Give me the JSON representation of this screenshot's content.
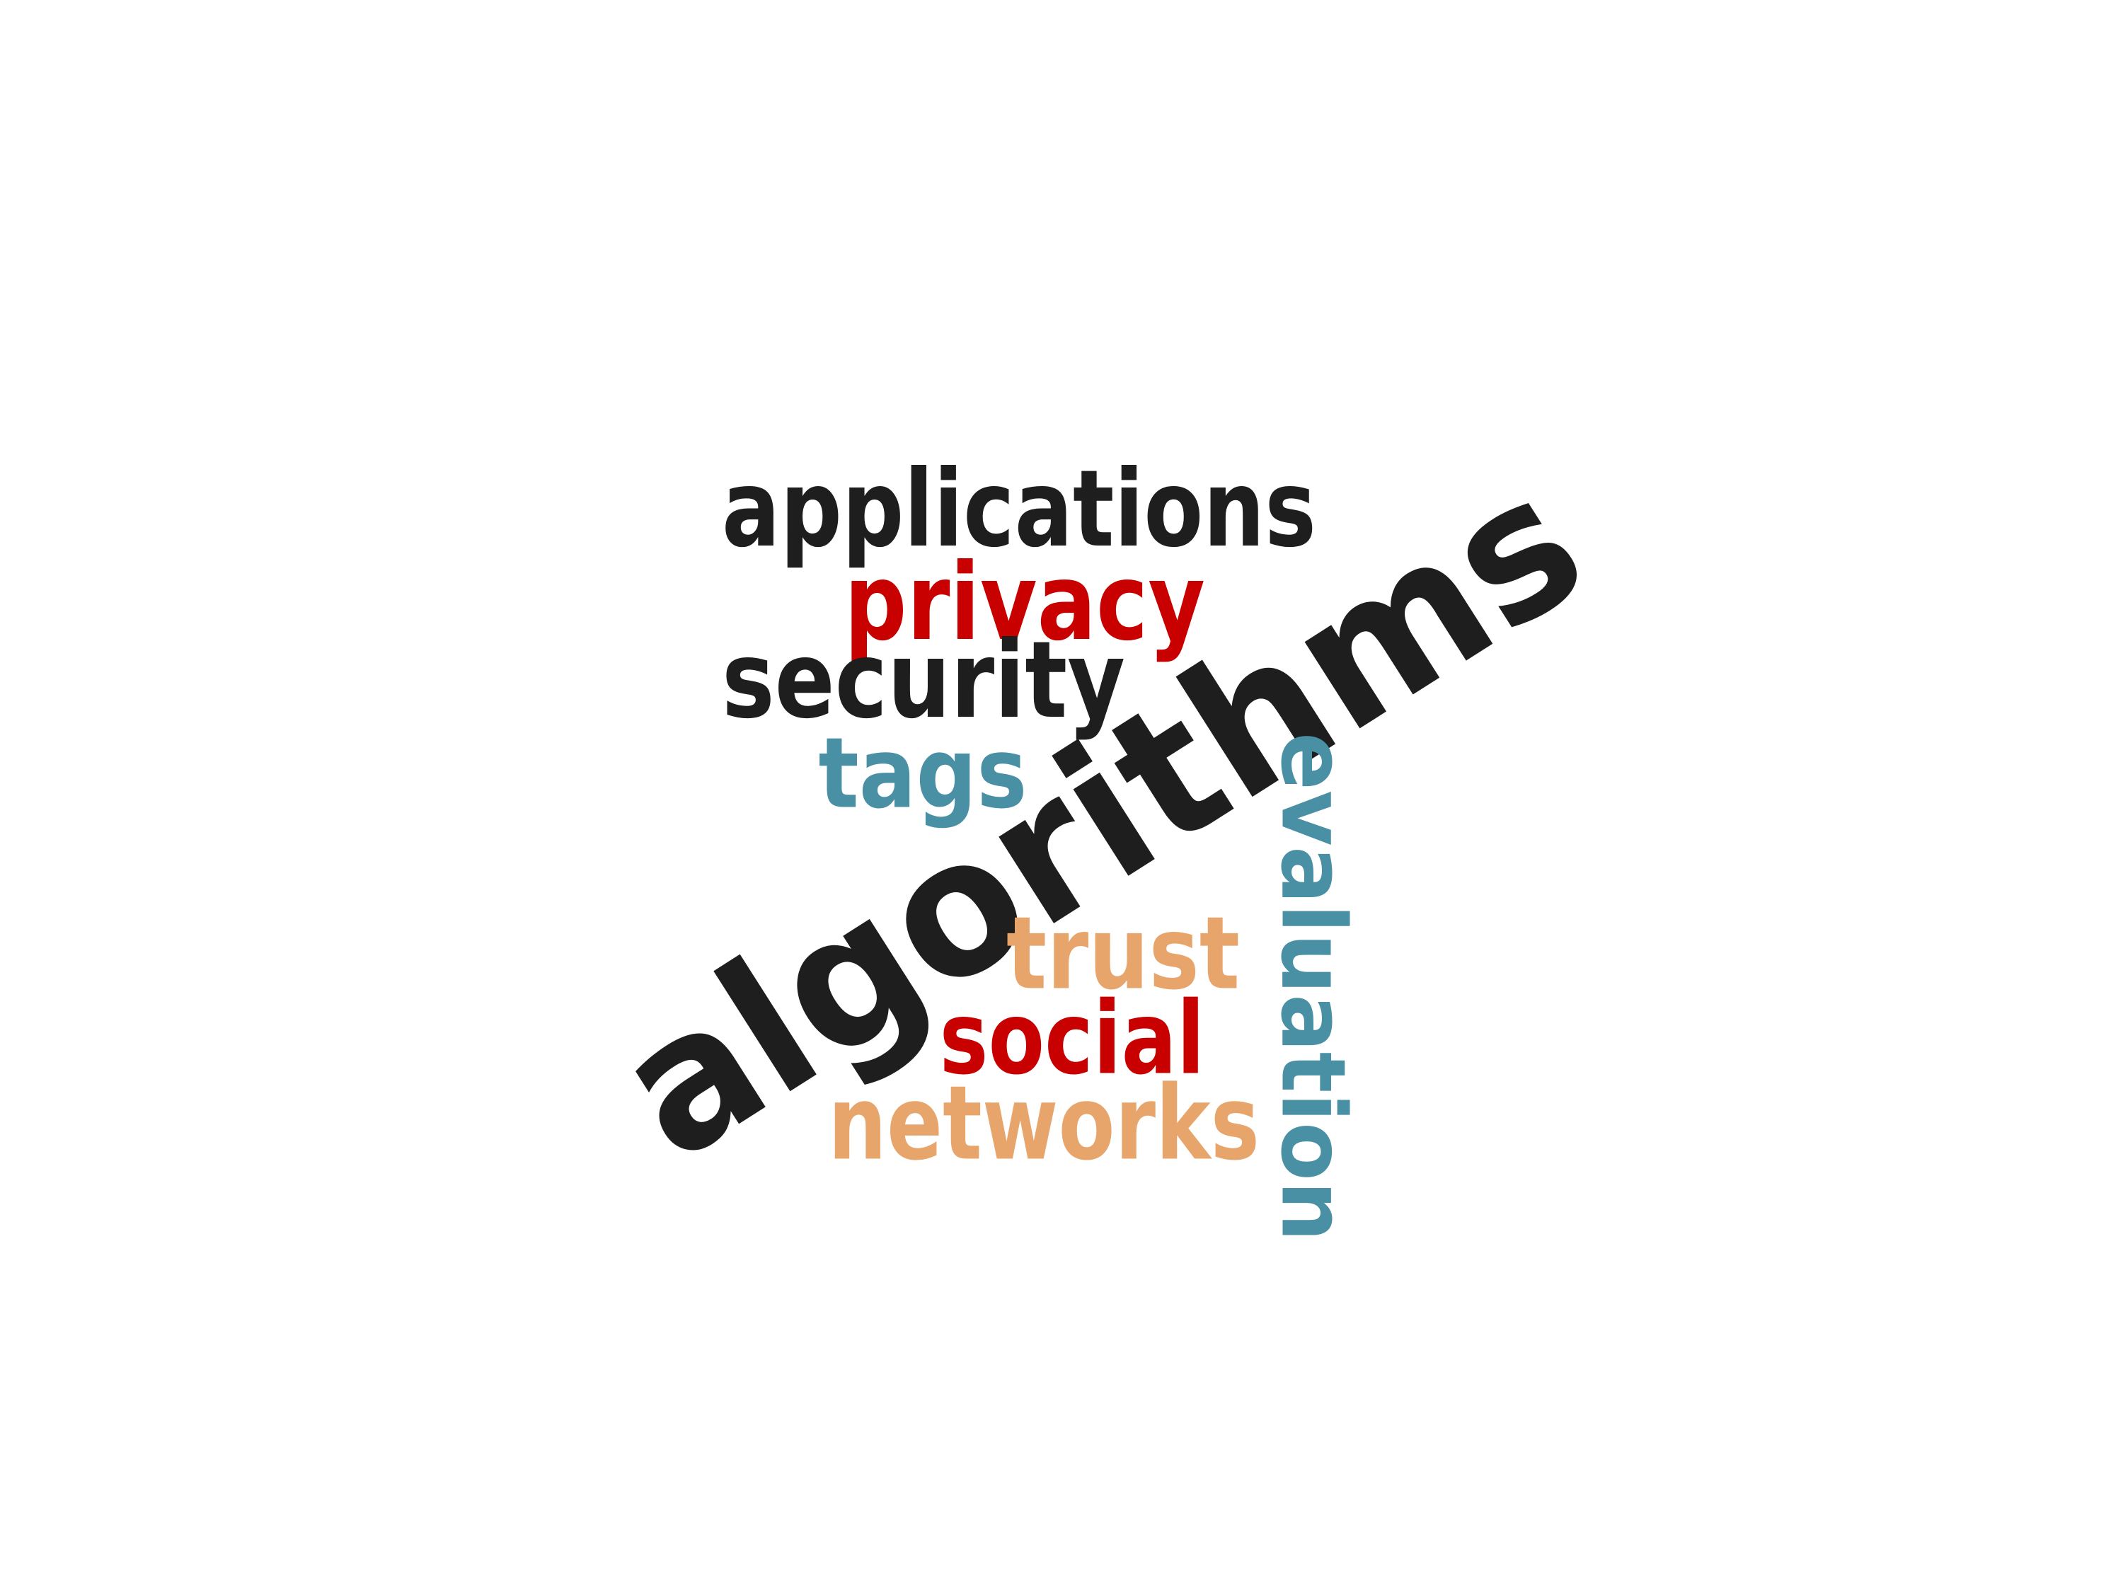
{
  "colors": {
    "black": "#1e1e1e",
    "red": "#c80000",
    "teal": "#4a90a4",
    "orange": "#e8a56b"
  },
  "words": [
    {
      "key": "applications",
      "text": "applications",
      "color": "black",
      "orientation": "horizontal"
    },
    {
      "key": "privacy",
      "text": "privacy",
      "color": "red",
      "orientation": "horizontal"
    },
    {
      "key": "security",
      "text": "security",
      "color": "black",
      "orientation": "horizontal"
    },
    {
      "key": "tags",
      "text": "tags",
      "color": "teal",
      "orientation": "horizontal"
    },
    {
      "key": "algorithms",
      "text": "algorithms",
      "color": "black",
      "orientation": "diagonal"
    },
    {
      "key": "evaluation",
      "text": "evaluation",
      "color": "teal",
      "orientation": "vertical"
    },
    {
      "key": "trust",
      "text": "trust",
      "color": "orange",
      "orientation": "horizontal"
    },
    {
      "key": "social",
      "text": "social",
      "color": "red",
      "orientation": "horizontal"
    },
    {
      "key": "networks",
      "text": "networks",
      "color": "orange",
      "orientation": "horizontal"
    }
  ]
}
